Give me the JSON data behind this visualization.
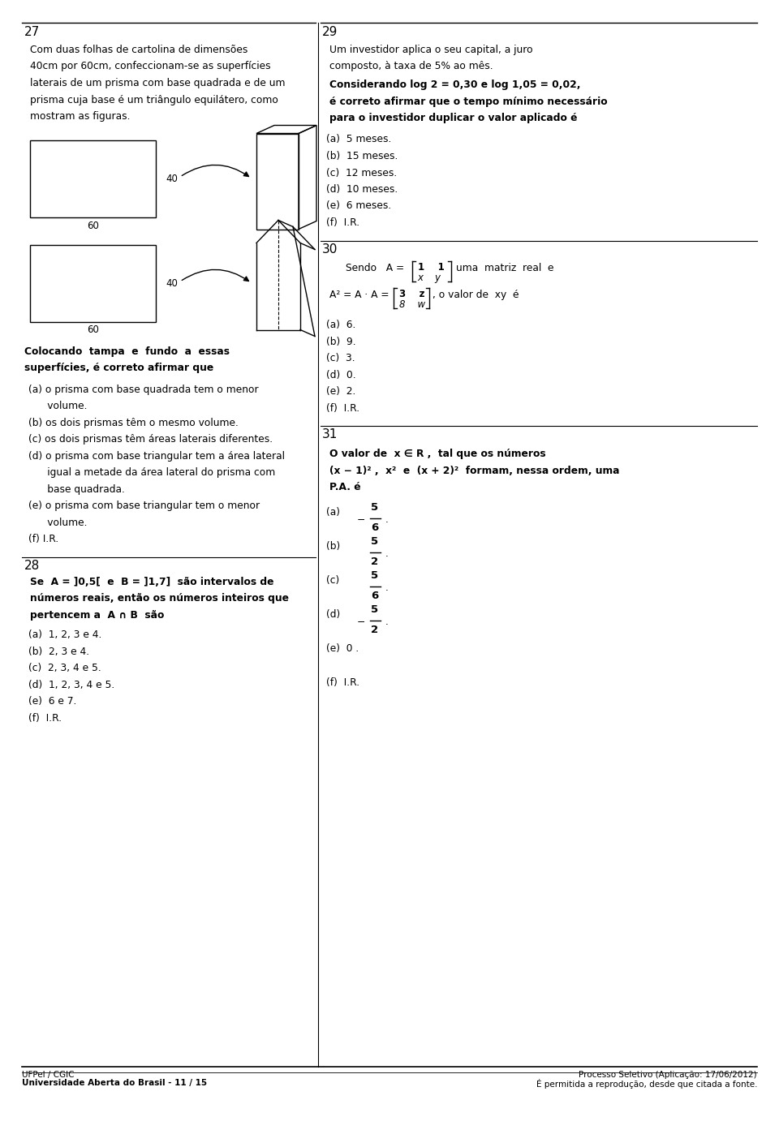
{
  "bg": "#ffffff",
  "pw": 9.6,
  "ph": 13.93,
  "dpi": 100,
  "lm": 0.028,
  "rm": 0.972,
  "div": 0.408,
  "q27_num": "27",
  "q27_body": [
    "Com duas folhas de cartolina de dimensões",
    "40cm por 60cm, confeccionam-se as superfícies",
    "laterais de um prisma com base quadrada e de um",
    "prisma cuja base é um triângulo equilátero, como",
    "mostram as figuras."
  ],
  "q27_bold1": "Colocando  tampa  e  fundo  a  essas",
  "q27_bold2": "superfícies, é correto afirmar que",
  "q27_items": [
    [
      "(a)",
      " o prisma com base quadrada tem o menor"
    ],
    [
      "",
      "      volume."
    ],
    [
      "(b)",
      " os dois prismas têm o mesmo volume."
    ],
    [
      "(c)",
      " os dois prismas têm áreas laterais diferentes."
    ],
    [
      "(d)",
      " o prisma com base triangular tem a área lateral"
    ],
    [
      "",
      "      igual a metade da área lateral do prisma com"
    ],
    [
      "",
      "      base quadrada."
    ],
    [
      "(e)",
      " o prisma com base triangular tem o menor"
    ],
    [
      "",
      "      volume."
    ],
    [
      "(f)",
      " I.R."
    ]
  ],
  "q28_num": "28",
  "q28_bold": [
    "Se  A = ]0,5[  e  B = ]1,7]  são intervalos de",
    "números reais, então os números inteiros que",
    "pertencem a  A ∩ B  são"
  ],
  "q28_items": [
    "(a)  1, 2, 3 e 4.",
    "(b)  2, 3 e 4.",
    "(c)  2, 3, 4 e 5.",
    "(d)  1, 2, 3, 4 e 5.",
    "(e)  6 e 7.",
    "(f)  I.R."
  ],
  "q29_num": "29",
  "q29_intro": [
    "Um investidor aplica o seu capital, a juro",
    "composto, à taxa de 5% ao mês."
  ],
  "q29_bold": [
    "Considerando log 2 = 0,30 e log 1,05 = 0,02,",
    "é correto afirmar que o tempo mínimo necessário",
    "para o investidor duplicar o valor aplicado é"
  ],
  "q29_items": [
    "(a)  5 meses.",
    "(b)  15 meses.",
    "(c)  12 meses.",
    "(d)  10 meses.",
    "(e)  6 meses.",
    "(f)  I.R."
  ],
  "q30_num": "30",
  "q30_items": [
    "(a)  6.",
    "(b)  9.",
    "(c)  3.",
    "(d)  0.",
    "(e)  2.",
    "(f)  I.R."
  ],
  "q31_num": "31",
  "q31_bold": [
    "O valor de  x ∈ R ,  tal que os números",
    "(x − 1)² ,  x²  e  (x + 2)²  formam, nessa ordem, uma",
    "P.A. é"
  ],
  "q31_items": [
    [
      "(a)",
      "−",
      "5",
      "6"
    ],
    [
      "(b)",
      "",
      "5",
      "2"
    ],
    [
      "(c)",
      "",
      "5",
      "6"
    ],
    [
      "(d)",
      "−",
      "5",
      "2"
    ],
    [
      "(e)",
      "0 .",
      "",
      ""
    ],
    [
      "(f)",
      "I.R.",
      "",
      ""
    ]
  ],
  "footer_l1": "UFPel / CGIC",
  "footer_l2": "Universidade Aberta do Brasil - 11 / 15",
  "footer_r1": "Processo Seletivo (Aplicação: 17/06/2012)",
  "footer_r2": "É permitida a reprodução, desde que citada a fonte."
}
